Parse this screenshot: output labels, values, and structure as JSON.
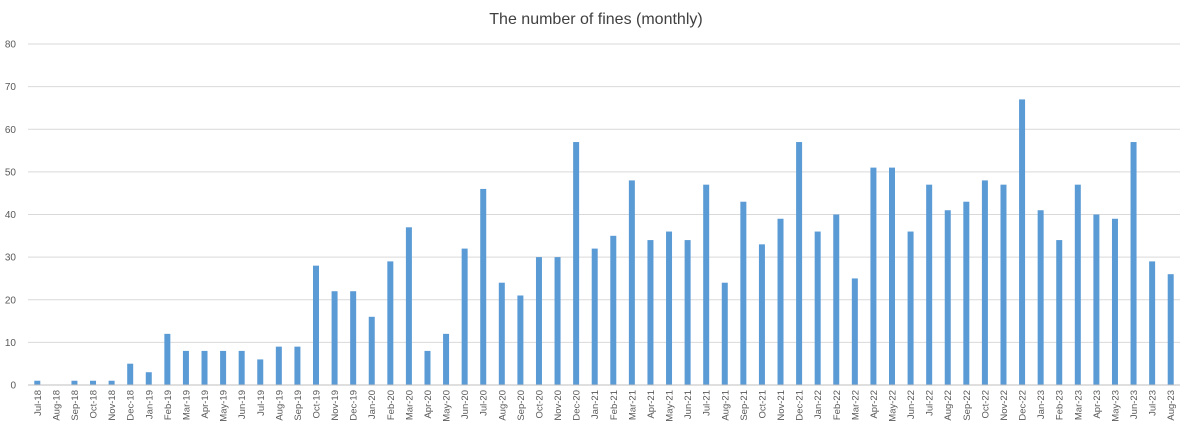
{
  "chart_data": {
    "type": "bar",
    "title": "The number of fines (monthly)",
    "xlabel": "",
    "ylabel": "",
    "ylim": [
      0,
      80
    ],
    "yticks": [
      0,
      10,
      20,
      30,
      40,
      50,
      60,
      70,
      80
    ],
    "grid": true,
    "legend": "none",
    "bar_color": "#5b9bd5",
    "categories": [
      "Jul-18",
      "Aug-18",
      "Sep-18",
      "Oct-18",
      "Nov-18",
      "Dec-18",
      "Jan-19",
      "Feb-19",
      "Mar-19",
      "Apr-19",
      "May-19",
      "Jun-19",
      "Jul-19",
      "Aug-19",
      "Sep-19",
      "Oct-19",
      "Nov-19",
      "Dec-19",
      "Jan-20",
      "Feb-20",
      "Mar-20",
      "Apr-20",
      "May-20",
      "Jun-20",
      "Jul-20",
      "Aug-20",
      "Sep-20",
      "Oct-20",
      "Nov-20",
      "Dec-20",
      "Jan-21",
      "Feb-21",
      "Mar-21",
      "Apr-21",
      "May-21",
      "Jun-21",
      "Jul-21",
      "Aug-21",
      "Sep-21",
      "Oct-21",
      "Nov-21",
      "Dec-21",
      "Jan-22",
      "Feb-22",
      "Mar-22",
      "Apr-22",
      "May-22",
      "Jun-22",
      "Jul-22",
      "Aug-22",
      "Sep-22",
      "Oct-22",
      "Nov-22",
      "Dec-22",
      "Jan-23",
      "Feb-23",
      "Mar-23",
      "Apr-23",
      "May-23",
      "Jun-23",
      "Jul-23",
      "Aug-23"
    ],
    "values": [
      1,
      0,
      1,
      1,
      1,
      5,
      3,
      12,
      8,
      8,
      8,
      8,
      6,
      9,
      9,
      28,
      22,
      22,
      16,
      29,
      37,
      8,
      12,
      32,
      46,
      24,
      21,
      30,
      30,
      57,
      32,
      35,
      48,
      34,
      36,
      34,
      47,
      24,
      43,
      33,
      39,
      57,
      36,
      40,
      25,
      51,
      51,
      36,
      47,
      41,
      43,
      48,
      47,
      67,
      41,
      34,
      47,
      40,
      39,
      57,
      29,
      26
    ]
  }
}
